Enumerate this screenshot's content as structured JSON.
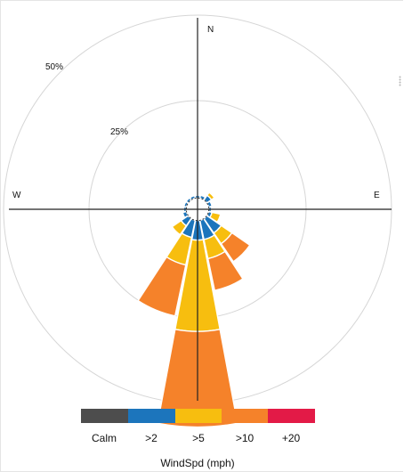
{
  "chart_data": {
    "type": "windrose",
    "directions": [
      "N",
      "NNE",
      "NE",
      "ENE",
      "E",
      "ESE",
      "SE",
      "SSE",
      "S",
      "SSW",
      "SW",
      "WSW",
      "W",
      "WNW",
      "NW",
      "NNW"
    ],
    "compass_labels": {
      "north": "N",
      "east": "E",
      "west": "W"
    },
    "radial_ticks": [
      {
        "value": 25,
        "label": "25%"
      },
      {
        "value": 50,
        "label": "50%"
      }
    ],
    "rmax_percent": 60,
    "bins": [
      {
        "label": "Calm",
        "color": "#4d4d4d"
      },
      {
        "label": ">2",
        "color": "#1c75bc"
      },
      {
        "label": ">5",
        "color": "#f7be0f"
      },
      {
        "label": ">10",
        "color": "#f5822a"
      },
      {
        "label": "+20",
        "color": "#e31a47"
      }
    ],
    "data": [
      {
        "dir": "N",
        "values": [
          0.3,
          0.6,
          0.0,
          0.0,
          0.0
        ]
      },
      {
        "dir": "NNE",
        "values": [
          0.3,
          0.7,
          0.3,
          0.0,
          0.0
        ]
      },
      {
        "dir": "NE",
        "values": [
          0.3,
          1.3,
          0.8,
          0.0,
          0.0
        ]
      },
      {
        "dir": "ENE",
        "values": [
          0.3,
          0.8,
          0.0,
          0.0,
          0.0
        ]
      },
      {
        "dir": "E",
        "values": [
          0.3,
          0.6,
          0.0,
          0.0,
          0.0
        ]
      },
      {
        "dir": "ESE",
        "values": [
          0.3,
          0.8,
          2.0,
          0.0,
          0.0
        ]
      },
      {
        "dir": "SE",
        "values": [
          0.3,
          4.0,
          3.0,
          5.0,
          0.0
        ]
      },
      {
        "dir": "SSE",
        "values": [
          0.3,
          4.5,
          4.5,
          7.5,
          0.0
        ]
      },
      {
        "dir": "S",
        "values": [
          0.3,
          4.5,
          21.0,
          22.0,
          0.0
        ]
      },
      {
        "dir": "SSW",
        "values": [
          0.3,
          4.0,
          6.5,
          12.0,
          0.0
        ]
      },
      {
        "dir": "SW",
        "values": [
          0.3,
          2.0,
          2.5,
          0.0,
          0.0
        ]
      },
      {
        "dir": "WSW",
        "values": [
          0.3,
          0.9,
          0.0,
          0.0,
          0.0
        ]
      },
      {
        "dir": "W",
        "values": [
          0.3,
          0.6,
          0.0,
          0.0,
          0.0
        ]
      },
      {
        "dir": "WNW",
        "values": [
          0.3,
          0.6,
          0.0,
          0.0,
          0.0
        ]
      },
      {
        "dir": "NW",
        "values": [
          0.3,
          0.6,
          0.0,
          0.0,
          0.0
        ]
      },
      {
        "dir": "NNW",
        "values": [
          0.3,
          0.6,
          0.0,
          0.0,
          0.0
        ]
      }
    ],
    "calm_circle_percent": 2.6,
    "legend_title": "WindSpd (mph)",
    "grid": true
  }
}
